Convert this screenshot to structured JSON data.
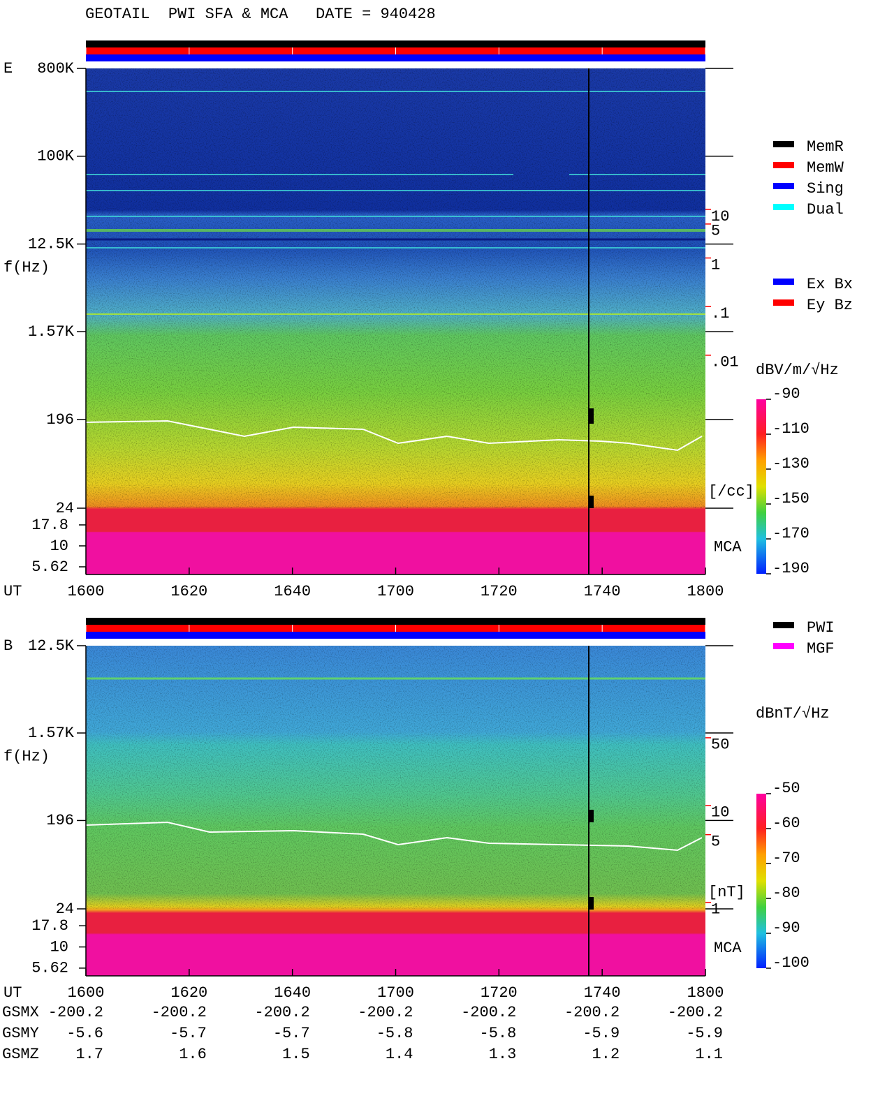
{
  "header": {
    "title": "GEOTAIL  PWI SFA & MCA   DATE = 940428"
  },
  "chart_data": [
    {
      "type": "spectrogram",
      "panel_label": "E",
      "y_label": "f(Hz)",
      "x_label": "UT",
      "yscale": "log",
      "ylim": [
        24,
        800000
      ],
      "yticks": [
        {
          "value": 800000,
          "label": "800K"
        },
        {
          "value": 100000,
          "label": "100K"
        },
        {
          "value": 12500,
          "label": "12.5K"
        },
        {
          "value": 1570,
          "label": "1.57K"
        },
        196,
        24
      ],
      "mca_label": "MCA",
      "mca_ylim": [
        4.55,
        28.2
      ],
      "mca_yticks": [
        17.8,
        10,
        5.62
      ],
      "xticks": [
        "1600",
        "1620",
        "1640",
        "1700",
        "1720",
        "1740",
        "1800"
      ],
      "density_label": "[/cc]",
      "density_lim": [
        7.14e-06,
        7937
      ],
      "density_ticks": [
        10,
        5,
        1,
        {
          "value": 0.1,
          "label": ".1"
        },
        {
          "value": 0.01,
          "label": ".01"
        }
      ],
      "colorbar": {
        "label": "dBV/m/√Hz",
        "clim": [
          -190,
          -90
        ],
        "ticks": [
          -90,
          -110,
          -130,
          -150,
          -170,
          -190
        ]
      },
      "legend": [
        {
          "name": "MemR",
          "color": "#000000"
        },
        {
          "name": "MemW",
          "color": "#ff0000"
        },
        {
          "name": "Sing",
          "color": "#0000ff"
        },
        {
          "name": "Dual",
          "color": "#00ffff"
        }
      ],
      "legend2": [
        {
          "name": "Ex Bx",
          "color": "#0000ff"
        },
        {
          "name": "Ey Bz",
          "color": "#ff0000"
        }
      ]
    },
    {
      "type": "spectrogram",
      "panel_label": "B",
      "y_label": "f(Hz)",
      "x_label": "UT",
      "yscale": "log",
      "ylim": [
        24,
        12500
      ],
      "yticks": [
        {
          "value": 12500,
          "label": "12.5K"
        },
        {
          "value": 1570,
          "label": "1.57K"
        },
        196,
        24
      ],
      "mca_label": "MCA",
      "mca_ylim": [
        4.55,
        28.2
      ],
      "mca_yticks": [
        17.8,
        10,
        5.62
      ],
      "xticks": [
        "1600",
        "1620",
        "1640",
        "1700",
        "1720",
        "1740",
        "1800"
      ],
      "density_label": "[nT]",
      "density_lim": [
        0.857,
        446
      ],
      "density_ticks": [
        50,
        10,
        5,
        1
      ],
      "colorbar": {
        "label": "dBnT/√Hz",
        "clim": [
          -100,
          -50
        ],
        "ticks": [
          -50,
          -60,
          -70,
          -80,
          -90,
          -100
        ]
      },
      "legend": [
        {
          "name": "PWI",
          "color": "#000000"
        },
        {
          "name": "MGF",
          "color": "#ff00ff"
        }
      ]
    }
  ],
  "orbit": {
    "rows": [
      {
        "label": "GSMX",
        "values": [
          -200.2,
          -200.2,
          -200.2,
          -200.2,
          -200.2,
          -200.2,
          -200.2
        ]
      },
      {
        "label": "GSMY",
        "values": [
          -5.6,
          -5.7,
          -5.7,
          -5.8,
          -5.8,
          -5.9,
          -5.9
        ]
      },
      {
        "label": "GSMZ",
        "values": [
          1.7,
          1.6,
          1.5,
          1.4,
          1.3,
          1.2,
          1.1
        ]
      }
    ]
  }
}
